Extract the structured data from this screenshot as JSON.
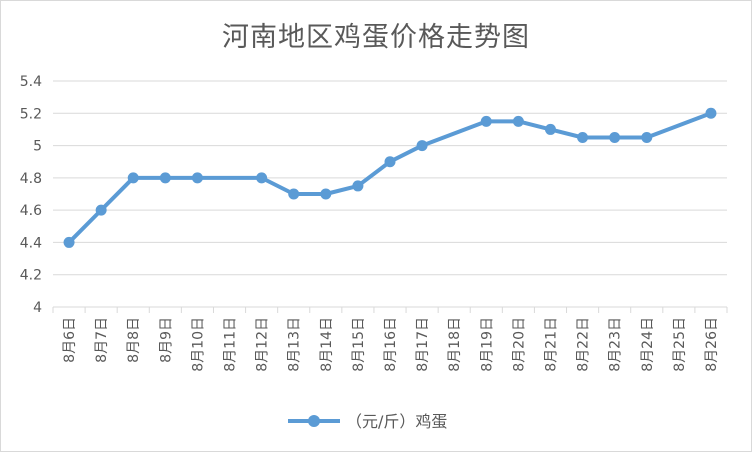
{
  "chart_data": {
    "type": "line",
    "title": "河南地区鸡蛋价格走势图",
    "xlabel": "",
    "ylabel": "",
    "ylim": [
      4,
      5.4
    ],
    "ytick_step": 0.2,
    "yticks": [
      "4",
      "4.2",
      "4.4",
      "4.6",
      "4.8",
      "5",
      "5.2",
      "5.4"
    ],
    "grid": true,
    "legend_position": "bottom",
    "categories": [
      "8月6日",
      "8月7日",
      "8月8日",
      "8月9日",
      "8月10日",
      "8月11日",
      "8月12日",
      "8月13日",
      "8月14日",
      "8月15日",
      "8月16日",
      "8月17日",
      "8月18日",
      "8月19日",
      "8月20日",
      "8月21日",
      "8月22日",
      "8月23日",
      "8月24日",
      "8月25日",
      "8月26日"
    ],
    "series": [
      {
        "name": "（元/斤）鸡蛋",
        "color": "#5b9bd5",
        "values": [
          4.4,
          4.6,
          4.8,
          4.8,
          4.8,
          null,
          4.8,
          4.7,
          4.7,
          4.75,
          4.9,
          5.0,
          null,
          5.15,
          5.15,
          5.1,
          5.05,
          5.05,
          5.05,
          null,
          5.2
        ]
      }
    ]
  },
  "colors": {
    "gridline": "#d9d9d9",
    "axis_text": "#595959",
    "series": "#5b9bd5"
  }
}
